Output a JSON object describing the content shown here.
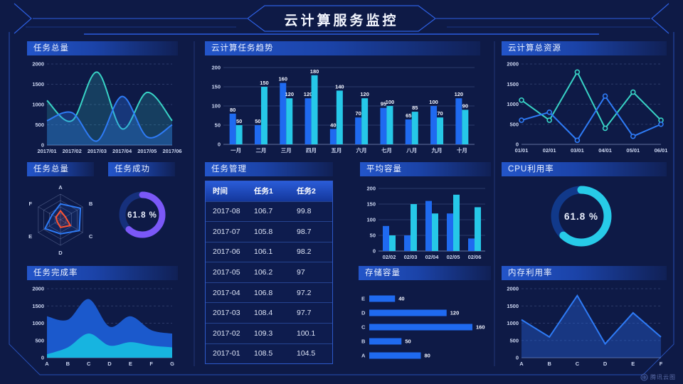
{
  "title": "云计算服务监控",
  "watermark": "腾讯云图",
  "colors": {
    "background": "#0e1a46",
    "accent_blue": "#2f63e8",
    "series_blue": "#1f6af0",
    "series_cyan": "#26c8e8",
    "series_teal": "#38d3c6",
    "radar_red": "#ff5332",
    "donut_purple": "#7b58f7",
    "donut_cyan": "#27cbe8"
  },
  "panels": {
    "task_total": {
      "title": "任务总量"
    },
    "trend": {
      "title": "云计算任务趋势"
    },
    "resources": {
      "title": "云计算总资源"
    },
    "radar": {
      "title": "任务总量"
    },
    "success": {
      "title": "任务成功"
    },
    "table": {
      "title": "任务管理"
    },
    "avg": {
      "title": "平均容量"
    },
    "cpu": {
      "title": "CPU利用率"
    },
    "completion": {
      "title": "任务完成率"
    },
    "storage": {
      "title": "存储容量"
    },
    "memory": {
      "title": "内存利用率"
    }
  },
  "chart_data": [
    {
      "id": "task_total",
      "type": "line",
      "title": "任务总量",
      "smooth": true,
      "x": [
        "2017/01",
        "2017/02",
        "2017/03",
        "2017/04",
        "2017/05",
        "2017/06"
      ],
      "ylim": [
        0,
        2000
      ],
      "yticks": [
        0,
        500,
        1000,
        1500,
        2000
      ],
      "grid": "dashed",
      "series": [
        {
          "name": "series1",
          "stroke": "#38d3c6",
          "fill": "rgba(56,211,198,0.20)",
          "values": [
            1100,
            600,
            1800,
            400,
            1300,
            600
          ]
        },
        {
          "name": "series2",
          "stroke": "#2e7bf6",
          "fill": "rgba(46,123,246,0.30)",
          "values": [
            600,
            800,
            100,
            1200,
            200,
            500
          ]
        }
      ]
    },
    {
      "id": "trend",
      "type": "bar",
      "title": "云计算任务趋势",
      "categories": [
        "一月",
        "二月",
        "三月",
        "四月",
        "五月",
        "六月",
        "七月",
        "八月",
        "九月",
        "十月"
      ],
      "ylim": [
        0,
        200
      ],
      "yticks": [
        0,
        50,
        100,
        150,
        200
      ],
      "value_labels": true,
      "series": [
        {
          "name": "任务1",
          "color": "#1f6af0",
          "values": [
            80,
            50,
            160,
            120,
            40,
            70,
            95,
            65,
            100,
            120
          ]
        },
        {
          "name": "任务2",
          "color": "#26c8e8",
          "values": [
            50,
            150,
            120,
            180,
            140,
            120,
            100,
            85,
            70,
            90
          ]
        }
      ]
    },
    {
      "id": "resources",
      "type": "line",
      "title": "云计算总资源",
      "smooth": false,
      "x": [
        "01/01",
        "02/01",
        "03/01",
        "04/01",
        "05/01",
        "06/01"
      ],
      "ylim": [
        0,
        2000
      ],
      "yticks": [
        0,
        500,
        1000,
        1500,
        2000
      ],
      "grid": "dashed",
      "series": [
        {
          "name": "series1",
          "stroke": "#38d3c6",
          "markers": true,
          "values": [
            1100,
            600,
            1800,
            400,
            1300,
            600
          ]
        },
        {
          "name": "series2",
          "stroke": "#2e7bf6",
          "markers": true,
          "values": [
            600,
            800,
            100,
            1200,
            200,
            500
          ]
        }
      ]
    },
    {
      "id": "radar",
      "type": "radar",
      "title": "任务总量",
      "axes": [
        "A",
        "B",
        "C",
        "D",
        "E",
        "F"
      ],
      "max": 1,
      "series": [
        {
          "name": "blue",
          "color": "#2e7bf6",
          "fill": "rgba(46,123,246,0.12)",
          "values": [
            0.62,
            0.9,
            0.85,
            0.55,
            0.7,
            0.38
          ]
        },
        {
          "name": "red",
          "color": "#ff5332",
          "fill": "rgba(255,83,50,0.12)",
          "values": [
            0.35,
            0.22,
            0.45,
            0.3,
            0.15,
            0.2
          ]
        }
      ]
    },
    {
      "id": "success",
      "type": "donut",
      "title": "任务成功",
      "percent": 61.8,
      "value_label": "61.8 %",
      "fraction": 0.618,
      "color": "#7b58f7",
      "track": "#16307c",
      "r": 28,
      "sw": 9,
      "fs": 11.5
    },
    {
      "id": "table",
      "type": "table",
      "title": "任务管理",
      "headers": [
        "时间",
        "任务1",
        "任务2"
      ],
      "rows": [
        [
          "2017-08",
          "106.7",
          "99.8"
        ],
        [
          "2017-07",
          "105.8",
          "98.7"
        ],
        [
          "2017-06",
          "106.1",
          "98.2"
        ],
        [
          "2017-05",
          "106.2",
          "97"
        ],
        [
          "2017-04",
          "106.8",
          "97.2"
        ],
        [
          "2017-03",
          "108.4",
          "97.7"
        ],
        [
          "2017-02",
          "109.3",
          "100.1"
        ],
        [
          "2017-01",
          "108.5",
          "104.5"
        ]
      ]
    },
    {
      "id": "avg",
      "type": "bar",
      "title": "平均容量",
      "categories": [
        "02/02",
        "02/03",
        "02/04",
        "02/05",
        "02/06"
      ],
      "ylim": [
        0,
        200
      ],
      "yticks": [
        0,
        50,
        100,
        150,
        200
      ],
      "value_labels": false,
      "series": [
        {
          "name": "series1",
          "color": "#1f6af0",
          "values": [
            80,
            50,
            160,
            120,
            40
          ]
        },
        {
          "name": "series2",
          "color": "#26c8e8",
          "values": [
            50,
            150,
            120,
            180,
            140
          ]
        }
      ]
    },
    {
      "id": "storage",
      "type": "hbar",
      "title": "存储容量",
      "categories": [
        "E",
        "D",
        "C",
        "B",
        "A"
      ],
      "values": [
        40,
        120,
        160,
        50,
        80
      ],
      "xmax": 160,
      "color": "#1f6af0"
    },
    {
      "id": "cpu",
      "type": "donut",
      "title": "CPU利用率",
      "percent": 61.8,
      "value_label": "61.8 %",
      "fraction": 0.618,
      "color": "#27cbe8",
      "track": "#11398a",
      "r": 37,
      "sw": 11,
      "fs": 13.5
    },
    {
      "id": "memory",
      "type": "line",
      "title": "内存利用率",
      "smooth": false,
      "x": [
        "A",
        "B",
        "C",
        "D",
        "E",
        "F"
      ],
      "ylim": [
        0,
        2000
      ],
      "yticks": [
        0,
        500,
        1000,
        1500,
        2000
      ],
      "grid": "dashed",
      "series": [
        {
          "name": "memory",
          "stroke": "#2e7bf6",
          "fill": "rgba(40,100,220,0.40)",
          "values": [
            1100,
            600,
            1800,
            400,
            1300,
            600
          ]
        }
      ]
    },
    {
      "id": "completion",
      "type": "line",
      "title": "任务完成率",
      "smooth": true,
      "x": [
        "A",
        "B",
        "C",
        "D",
        "E",
        "F",
        "G"
      ],
      "ylim": [
        0,
        2000
      ],
      "yticks": [
        0,
        500,
        1000,
        1500,
        2000
      ],
      "grid": "dashed",
      "series": [
        {
          "name": "total",
          "stroke": "none",
          "fill": "#1b59cc",
          "values": [
            1200,
            1100,
            1700,
            900,
            1200,
            800,
            700
          ]
        },
        {
          "name": "part",
          "stroke": "none",
          "fill": "#17b4e0",
          "values": [
            100,
            300,
            700,
            350,
            450,
            350,
            300
          ]
        }
      ]
    }
  ]
}
